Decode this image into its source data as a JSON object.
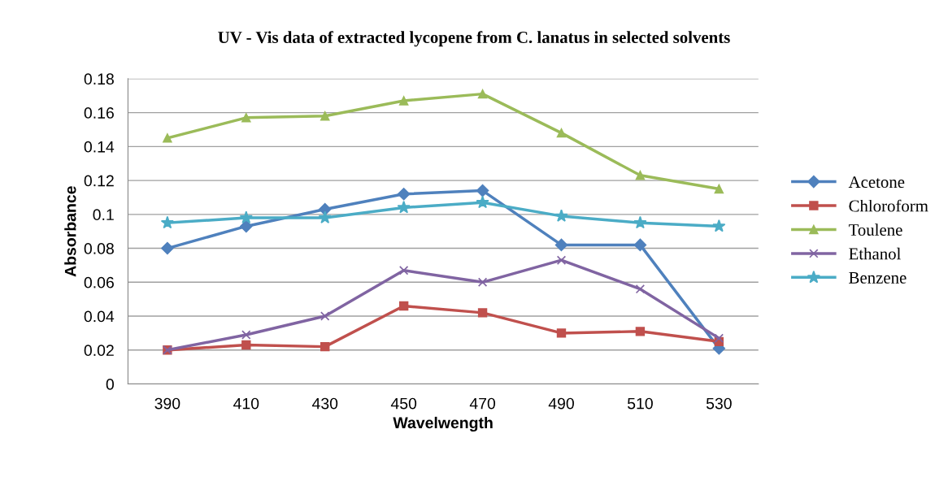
{
  "chart_data": {
    "type": "line",
    "title": "UV - Vis data of extracted lycopene from C. lanatus in selected solvents",
    "xlabel": "Wavelwength",
    "ylabel": "Absorbance",
    "categories": [
      "390",
      "410",
      "430",
      "450",
      "470",
      "490",
      "510",
      "530"
    ],
    "series": [
      {
        "name": "Acetone",
        "color": "#4f81bd",
        "marker": "diamond",
        "values": [
          0.08,
          0.093,
          0.103,
          0.112,
          0.114,
          0.082,
          0.082,
          0.021
        ]
      },
      {
        "name": "Chloroform",
        "color": "#c0504d",
        "marker": "square",
        "values": [
          0.02,
          0.023,
          0.022,
          0.046,
          0.042,
          0.03,
          0.031,
          0.025
        ]
      },
      {
        "name": "Toulene",
        "color": "#9bbb59",
        "marker": "triangle",
        "values": [
          0.145,
          0.157,
          0.158,
          0.167,
          0.171,
          0.148,
          0.123,
          0.115
        ]
      },
      {
        "name": "Ethanol",
        "color": "#8064a2",
        "marker": "cross",
        "values": [
          0.02,
          0.029,
          0.04,
          0.067,
          0.06,
          0.073,
          0.056,
          0.027
        ]
      },
      {
        "name": "Benzene",
        "color": "#4bacc6",
        "marker": "star",
        "values": [
          0.095,
          0.098,
          0.098,
          0.104,
          0.107,
          0.099,
          0.095,
          0.093
        ]
      }
    ],
    "ylim": [
      0,
      0.18
    ],
    "yticks": [
      {
        "value": 0,
        "label": "0"
      },
      0.02,
      0.04,
      0.06,
      0.08,
      {
        "value": 0.1,
        "label": "0.1"
      },
      0.12,
      0.14,
      0.16,
      0.18
    ],
    "grid": "y",
    "legend": "right"
  }
}
